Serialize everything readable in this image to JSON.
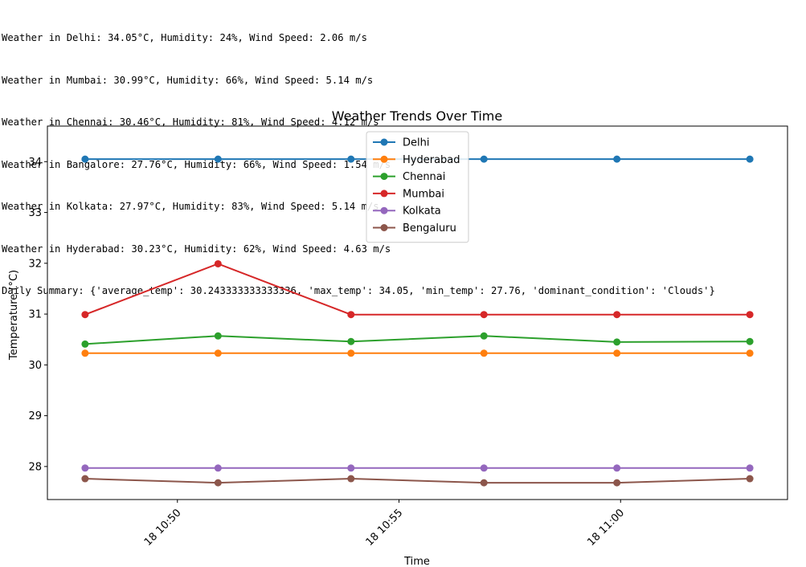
{
  "console_lines": [
    "Weather in Delhi: 34.05°C, Humidity: 24%, Wind Speed: 2.06 m/s",
    "Weather in Mumbai: 30.99°C, Humidity: 66%, Wind Speed: 5.14 m/s",
    "Weather in Chennai: 30.46°C, Humidity: 81%, Wind Speed: 4.12 m/s",
    "Weather in Bangalore: 27.76°C, Humidity: 66%, Wind Speed: 1.54 m/s",
    "Weather in Kolkata: 27.97°C, Humidity: 83%, Wind Speed: 5.14 m/s",
    "Weather in Hyderabad: 30.23°C, Humidity: 62%, Wind Speed: 4.63 m/s",
    "Daily Summary: {'average_temp': 30.243333333333336, 'max_temp': 34.05, 'min_temp': 27.76, 'dominant_condition': 'Clouds'}"
  ],
  "chart_data": {
    "type": "line",
    "title": "Weather Trends Over Time",
    "xlabel": "Time",
    "ylabel": "Temperature (°C)",
    "x": [
      "18 10:47:55",
      "18 10:50:55",
      "18 10:53:55",
      "18 10:56:55",
      "18 10:59:55",
      "18 11:02:55"
    ],
    "x_ticks": [
      {
        "label": "18 10:50",
        "value": "18 10:50:00"
      },
      {
        "label": "18 10:55",
        "value": "18 10:55:00"
      },
      {
        "label": "18 11:00",
        "value": "18 11:00:00"
      }
    ],
    "xlim": [
      "18 10:47:04",
      "18 11:03:46"
    ],
    "ylim": [
      27.35,
      34.7
    ],
    "y_ticks": [
      28,
      29,
      30,
      31,
      32,
      33,
      34
    ],
    "legend_position": "upper-center",
    "grid": false,
    "series": [
      {
        "name": "Delhi",
        "color": "#1f77b4",
        "values": [
          34.05,
          34.05,
          34.05,
          34.05,
          34.05,
          34.05
        ]
      },
      {
        "name": "Hyderabad",
        "color": "#ff7f0e",
        "values": [
          30.23,
          30.23,
          30.23,
          30.23,
          30.23,
          30.23
        ]
      },
      {
        "name": "Chennai",
        "color": "#2ca02c",
        "values": [
          30.41,
          30.57,
          30.46,
          30.57,
          30.45,
          30.46
        ]
      },
      {
        "name": "Mumbai",
        "color": "#d62728",
        "values": [
          30.99,
          31.99,
          30.99,
          30.99,
          30.99,
          30.99
        ]
      },
      {
        "name": "Kolkata",
        "color": "#9467bd",
        "values": [
          27.97,
          27.97,
          27.97,
          27.97,
          27.97,
          27.97
        ]
      },
      {
        "name": "Bengaluru",
        "color": "#8c564b",
        "values": [
          27.76,
          27.68,
          27.76,
          27.68,
          27.68,
          27.76
        ]
      }
    ]
  }
}
